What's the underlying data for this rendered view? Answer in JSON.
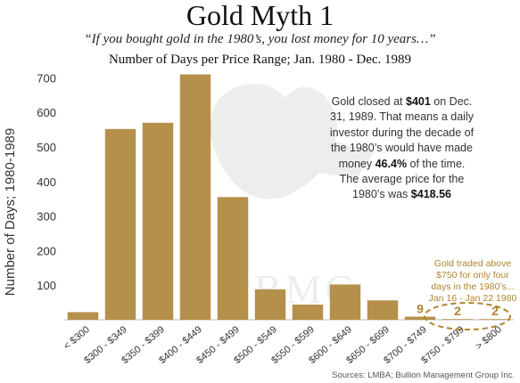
{
  "header": {
    "title": "Gold Myth 1",
    "quote": "“If you bought gold in the 1980’s, you lost money for 10 years…”",
    "subtitle": "Number of Days per Price Range; Jan. 1980 - Dec. 1989"
  },
  "notes": {
    "main_1": "Gold closed at ",
    "main_price": "$401",
    "main_2": " on Dec. 31, 1989.  That means a daily investor during the decade of the 1980’s would have made money ",
    "main_pct": "46.4%",
    "main_3": " of the time.  The average price for the 1980’s was ",
    "main_avg": "$418.56",
    "gold_note": "Gold traded above $750 for only four days in the 1980’s... Jan 16 - Jan 22 1980"
  },
  "source": "Sources: LMBA; Bullion Management Group Inc.",
  "colors": {
    "bar": "#b5904a",
    "bar_edge": "#ffffff",
    "highlight": "#b08530",
    "axis_text": "#333333"
  },
  "chart_data": {
    "type": "bar",
    "title": "Gold Myth 1",
    "ylabel": "Number of Days; 1980-1989",
    "xlabel": "",
    "categories": [
      "< $300",
      "$300 - $349",
      "$350 - $399",
      "$400 - $449",
      "$450 - $499",
      "$500 - $549",
      "$550 - $599",
      "$600 - $649",
      "$650 - $699",
      "$700 - $749",
      "$750 - $799",
      "> $800"
    ],
    "values": [
      22,
      552,
      570,
      710,
      355,
      88,
      44,
      102,
      56,
      9,
      2,
      2
    ],
    "data_labels": [
      "",
      "",
      "",
      "",
      "",
      "",
      "",
      "",
      "",
      "9",
      "2",
      "2"
    ],
    "ylim": [
      0,
      750
    ],
    "yticks": [
      100,
      200,
      300,
      400,
      500,
      600,
      700
    ],
    "grid": false,
    "legend": "none"
  }
}
